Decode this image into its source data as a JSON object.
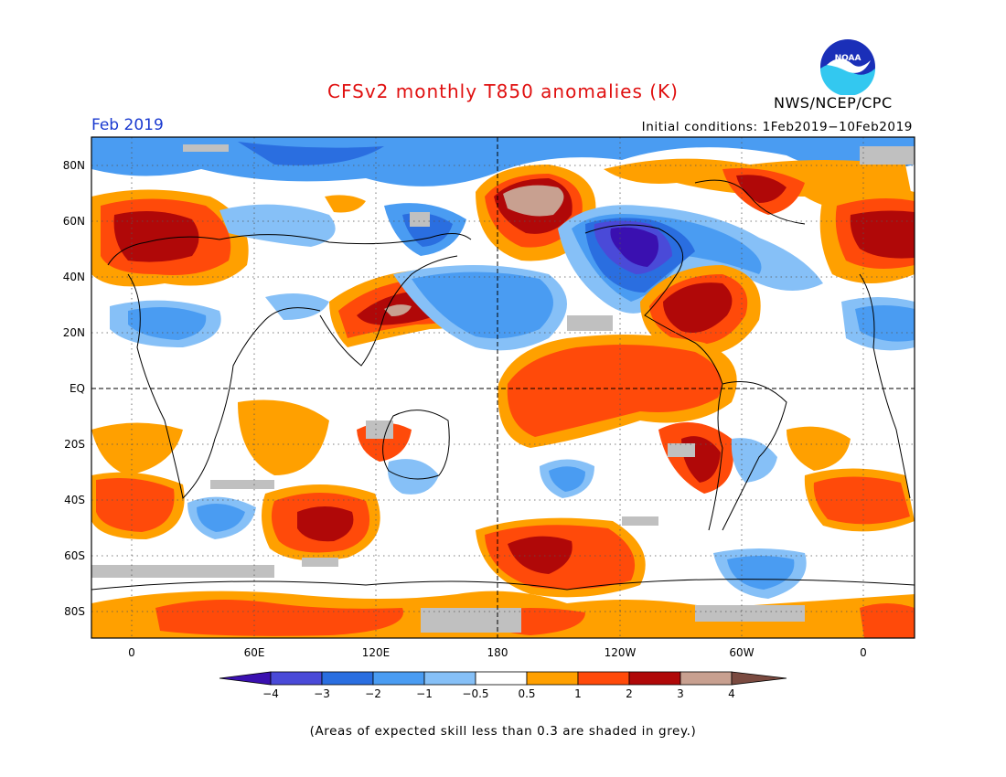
{
  "header": {
    "title": "CFSv2 monthly T850 anomalies (K)",
    "agency": "NWS/NCEP/CPC",
    "logo_text": "NOAA",
    "month": "Feb 2019",
    "initial_conditions": "Initial conditions: 1Feb2019−10Feb2019"
  },
  "map": {
    "lat_labels": [
      "80N",
      "60N",
      "40N",
      "20N",
      "EQ",
      "20S",
      "40S",
      "60S",
      "80S"
    ],
    "lon_labels": [
      "0",
      "60E",
      "120E",
      "180",
      "120W",
      "60W",
      "0"
    ]
  },
  "colorbar": {
    "ticks": [
      "−4",
      "−3",
      "−2",
      "−1",
      "−0.5",
      "0.5",
      "1",
      "2",
      "3",
      "4"
    ],
    "colors": [
      "#3a10b0",
      "#4a4ad8",
      "#2a6ee0",
      "#4a9cf2",
      "#86c0f7",
      "#ffffff",
      "#ffa000",
      "#ff4a0a",
      "#b00808",
      "#c8a090",
      "#7a4a40"
    ],
    "grey_color": "#c0c0c0"
  },
  "note": "(Areas of expected skill less than 0.3 are shaded in grey.)"
}
